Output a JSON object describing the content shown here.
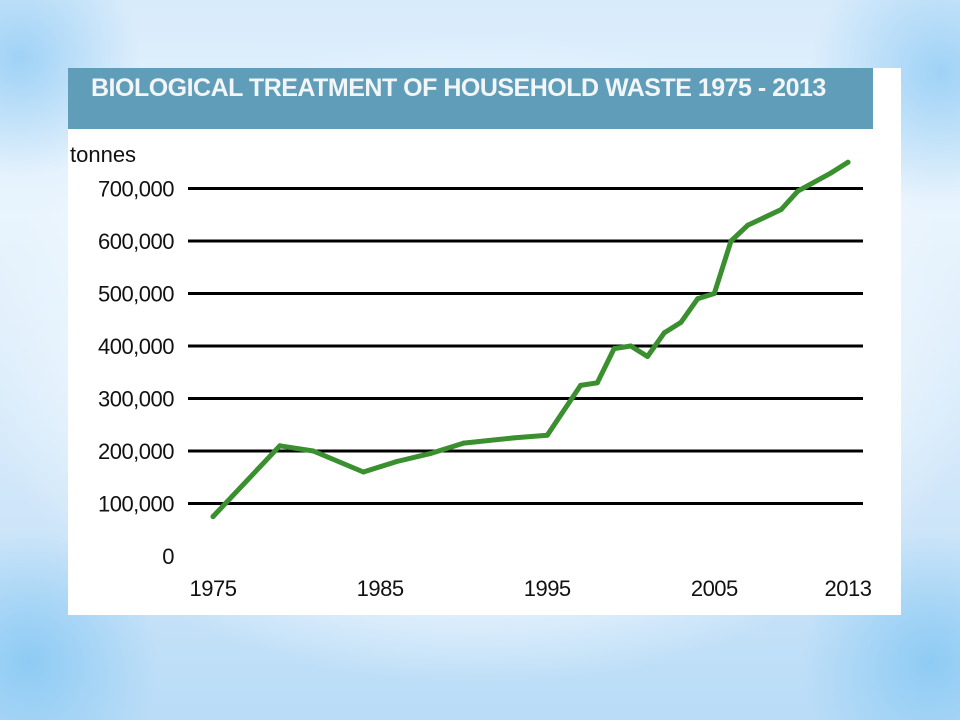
{
  "chart_data": {
    "type": "line",
    "title": "BIOLOGICAL TREATMENT OF HOUSEHOLD WASTE 1975 - 2013",
    "ylabel": "tonnes",
    "xlabel": "",
    "ylim": [
      0,
      750000
    ],
    "xlim": [
      1975,
      2013
    ],
    "y_ticks": [
      {
        "value": 0,
        "label": "0"
      },
      {
        "value": 100000,
        "label": "100,000"
      },
      {
        "value": 200000,
        "label": "200,000"
      },
      {
        "value": 300000,
        "label": "300,000"
      },
      {
        "value": 400000,
        "label": "400,000"
      },
      {
        "value": 500000,
        "label": "500,000"
      },
      {
        "value": 600000,
        "label": "600,000"
      },
      {
        "value": 700000,
        "label": "700,000"
      }
    ],
    "x_ticks": [
      {
        "value": 1975,
        "label": "1975"
      },
      {
        "value": 1985,
        "label": "1985"
      },
      {
        "value": 1995,
        "label": "1995"
      },
      {
        "value": 2005,
        "label": "2005"
      },
      {
        "value": 2013,
        "label": "2013"
      }
    ],
    "grid": "horizontal",
    "series": [
      {
        "color": "#3a8f2e",
        "x": [
          1975,
          1979,
          1981,
          1984,
          1986,
          1988,
          1990,
          1993,
          1995,
          1997,
          1998,
          1999,
          2000,
          2001,
          2002,
          2003,
          2004,
          2005,
          2006,
          2007,
          2009,
          2010,
          2012,
          2013
        ],
        "y": [
          75000,
          210000,
          200000,
          160000,
          180000,
          195000,
          215000,
          225000,
          230000,
          325000,
          330000,
          395000,
          400000,
          380000,
          425000,
          445000,
          490000,
          500000,
          600000,
          630000,
          660000,
          695000,
          730000,
          750000
        ]
      }
    ]
  }
}
